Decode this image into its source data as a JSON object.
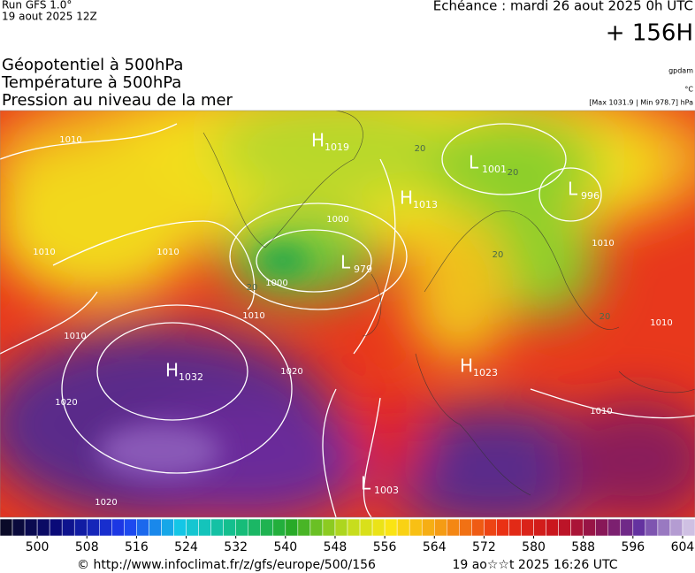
{
  "header": {
    "run": "Run GFS 1.0°",
    "run_date": "19 aout 2025 12Z",
    "valid": "Echéance : mardi 26 aout 2025 0h UTC",
    "lead": "+ 156H",
    "fields": [
      "Géopotentiel à 500hPa",
      "Température à 500hPa",
      "Pression au niveau de la mer"
    ],
    "unit_geopotential": "gpdam",
    "unit_temperature": "°C",
    "pressure_range": "[Max 1031.9 | Min 978.7] hPa"
  },
  "map": {
    "centers": [
      {
        "letter": "H",
        "pressure": "1019"
      },
      {
        "letter": "L",
        "pressure": "1001"
      },
      {
        "letter": "H",
        "pressure": "1013"
      },
      {
        "letter": "L",
        "pressure": "996"
      },
      {
        "letter": "L",
        "pressure": "979"
      },
      {
        "letter": "H",
        "pressure": "1032"
      },
      {
        "letter": "H",
        "pressure": "1023"
      },
      {
        "letter": "L",
        "pressure": "1003"
      }
    ],
    "isobar_labels": [
      "1010",
      "1010",
      "1010",
      "1000",
      "1000",
      "1010",
      "1010",
      "1020",
      "1020",
      "1020",
      "1010",
      "1010",
      "1010"
    ],
    "temperature_labels": [
      "20",
      "20",
      "20",
      "20",
      "20"
    ]
  },
  "colorbar": {
    "range": [
      494,
      606
    ],
    "ticks": [
      500,
      508,
      516,
      524,
      532,
      540,
      548,
      556,
      564,
      572,
      580,
      588,
      596,
      604
    ]
  },
  "footer": {
    "url": "© http://www.infoclimat.fr/z/gfs/europe/500/156",
    "generated": "19 ao☆☆t 2025 16:26 UTC"
  }
}
